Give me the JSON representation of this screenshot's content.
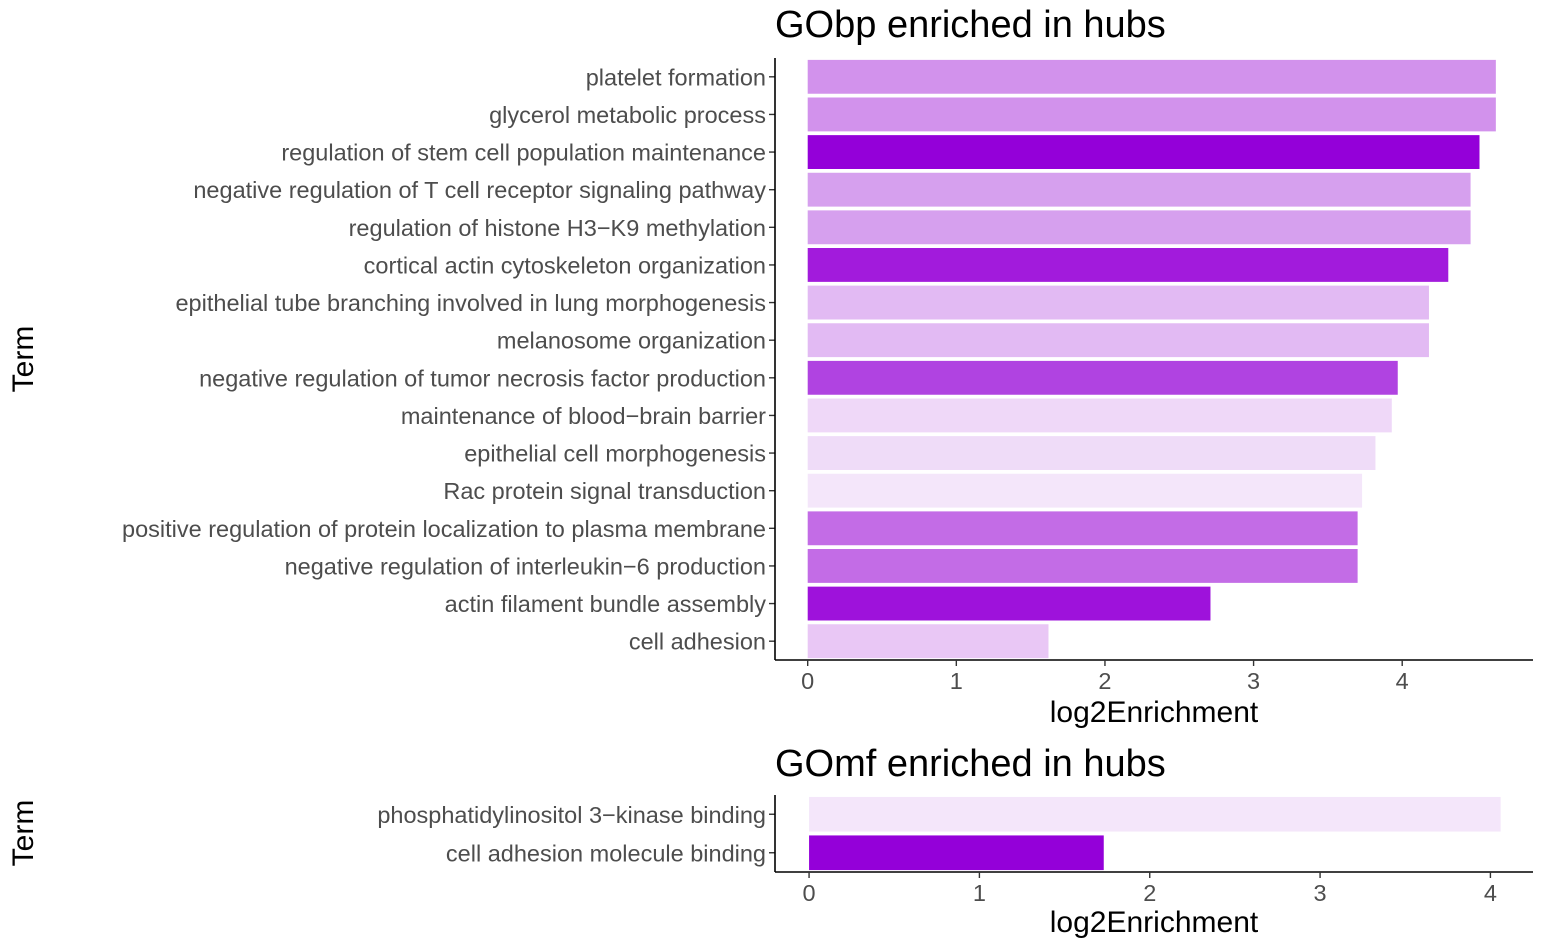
{
  "chart_data": [
    {
      "type": "bar",
      "orientation": "horizontal",
      "title": "GObp enriched in hubs",
      "xlabel": "log2Enrichment",
      "ylabel": "Term",
      "xlim": [
        -0.22,
        4.88
      ],
      "xticks": [
        0,
        1,
        2,
        3,
        4
      ],
      "grid": false,
      "legend": "none",
      "categories": [
        "platelet formation",
        "glycerol metabolic process",
        "regulation of stem cell population maintenance",
        "negative regulation of T cell receptor signaling pathway",
        "regulation of histone H3−K9 methylation",
        "cortical actin cytoskeleton organization",
        "epithelial tube branching involved in lung morphogenesis",
        "melanosome organization",
        "negative regulation of tumor necrosis factor production",
        "maintenance of blood−brain barrier",
        "epithelial cell morphogenesis",
        "Rac protein signal transduction",
        "positive regulation of protein localization to plasma membrane",
        "negative regulation of interleukin−6 production",
        "actin filament bundle assembly",
        "cell adhesion"
      ],
      "values": [
        4.63,
        4.63,
        4.52,
        4.46,
        4.46,
        4.31,
        4.18,
        4.18,
        3.97,
        3.93,
        3.82,
        3.73,
        3.7,
        3.7,
        2.71,
        1.62
      ],
      "colors": [
        "#d292ec",
        "#d292ec",
        "#9400d9",
        "#d6a0ee",
        "#d6a0ee",
        "#a21bdc",
        "#e2baf3",
        "#e2baf3",
        "#b043e1",
        "#efd8f8",
        "#efdcf8",
        "#f4e6fa",
        "#c36ce6",
        "#c36ce6",
        "#9e12db",
        "#e9c7f5"
      ]
    },
    {
      "type": "bar",
      "orientation": "horizontal",
      "title": "GOmf enriched in hubs",
      "xlabel": "log2Enrichment",
      "ylabel": "Term",
      "xlim": [
        -0.2,
        4.25
      ],
      "xticks": [
        0,
        1,
        2,
        3,
        4
      ],
      "grid": false,
      "legend": "none",
      "categories": [
        "phosphatidylinositol 3−kinase binding",
        "cell adhesion molecule binding"
      ],
      "values": [
        4.06,
        1.73
      ],
      "colors": [
        "#f4e6fa",
        "#9400d9"
      ]
    }
  ]
}
